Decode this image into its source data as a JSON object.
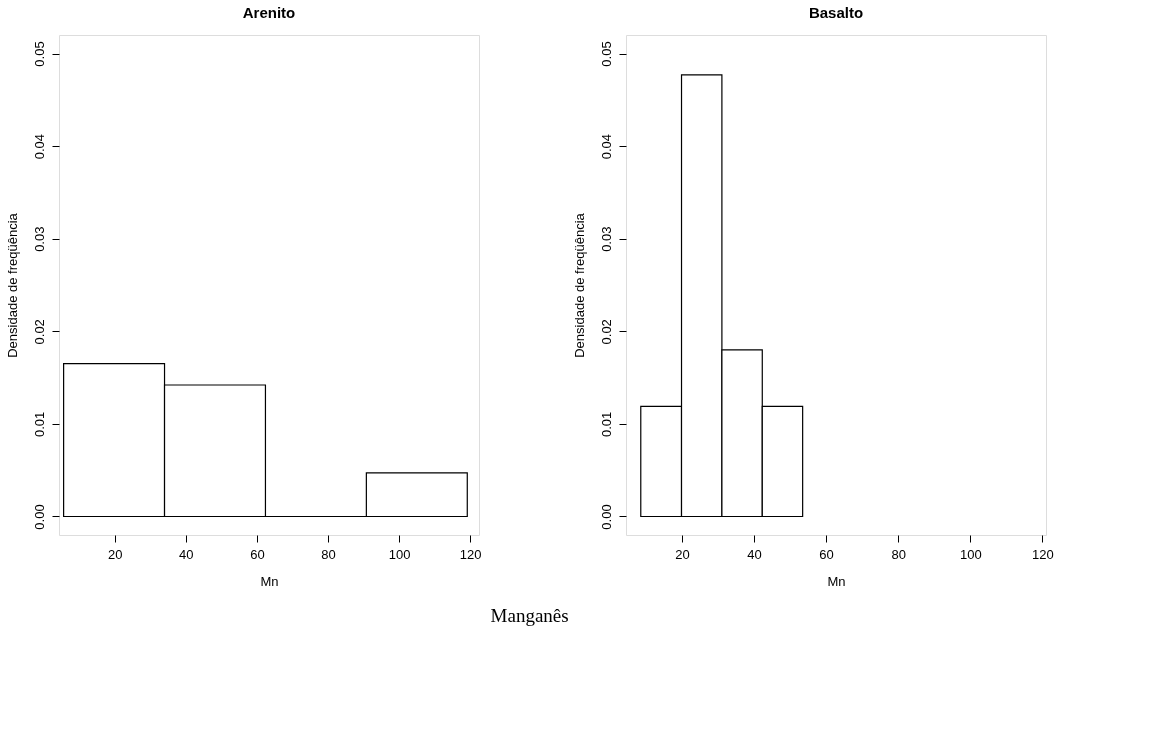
{
  "chart_data": [
    {
      "type": "histogram",
      "title": "Arenito",
      "xlabel": "Mn",
      "ylabel": "Densidade de freqüência",
      "bins": [
        5.6,
        34.0,
        62.4,
        90.8,
        119.2
      ],
      "values": [
        0.0165,
        0.0142,
        0,
        0.0047
      ],
      "xlim": [
        4.3,
        122.5
      ],
      "ylim": [
        -0.002,
        0.052
      ],
      "xticks": [
        20,
        40,
        60,
        80,
        100,
        120
      ],
      "yticks": [
        {
          "value": 0,
          "label": "0.00"
        },
        {
          "value": 0.01,
          "label": "0.01"
        },
        {
          "value": 0.02,
          "label": "0.02"
        },
        {
          "value": 0.03,
          "label": "0.03"
        },
        {
          "value": 0.04,
          "label": "0.04"
        },
        {
          "value": 0.05,
          "label": "0.05"
        }
      ]
    },
    {
      "type": "histogram",
      "title": "Basalto",
      "xlabel": "Mn",
      "ylabel": "Densidade de freqüência",
      "bins": [
        8.6,
        19.9,
        31.1,
        42.3,
        53.5
      ],
      "values": [
        0.0119,
        0.0477,
        0.018,
        0.0119
      ],
      "xlim": [
        4.5,
        121
      ],
      "ylim": [
        -0.002,
        0.052
      ],
      "xticks": [
        20,
        40,
        60,
        80,
        100,
        120
      ],
      "yticks": [
        {
          "value": 0,
          "label": "0.00"
        },
        {
          "value": 0.01,
          "label": "0.01"
        },
        {
          "value": 0.02,
          "label": "0.02"
        },
        {
          "value": 0.03,
          "label": "0.03"
        },
        {
          "value": 0.04,
          "label": "0.04"
        },
        {
          "value": 0.05,
          "label": "0.05"
        }
      ],
      "annotations": [
        "Manganês"
      ]
    }
  ]
}
